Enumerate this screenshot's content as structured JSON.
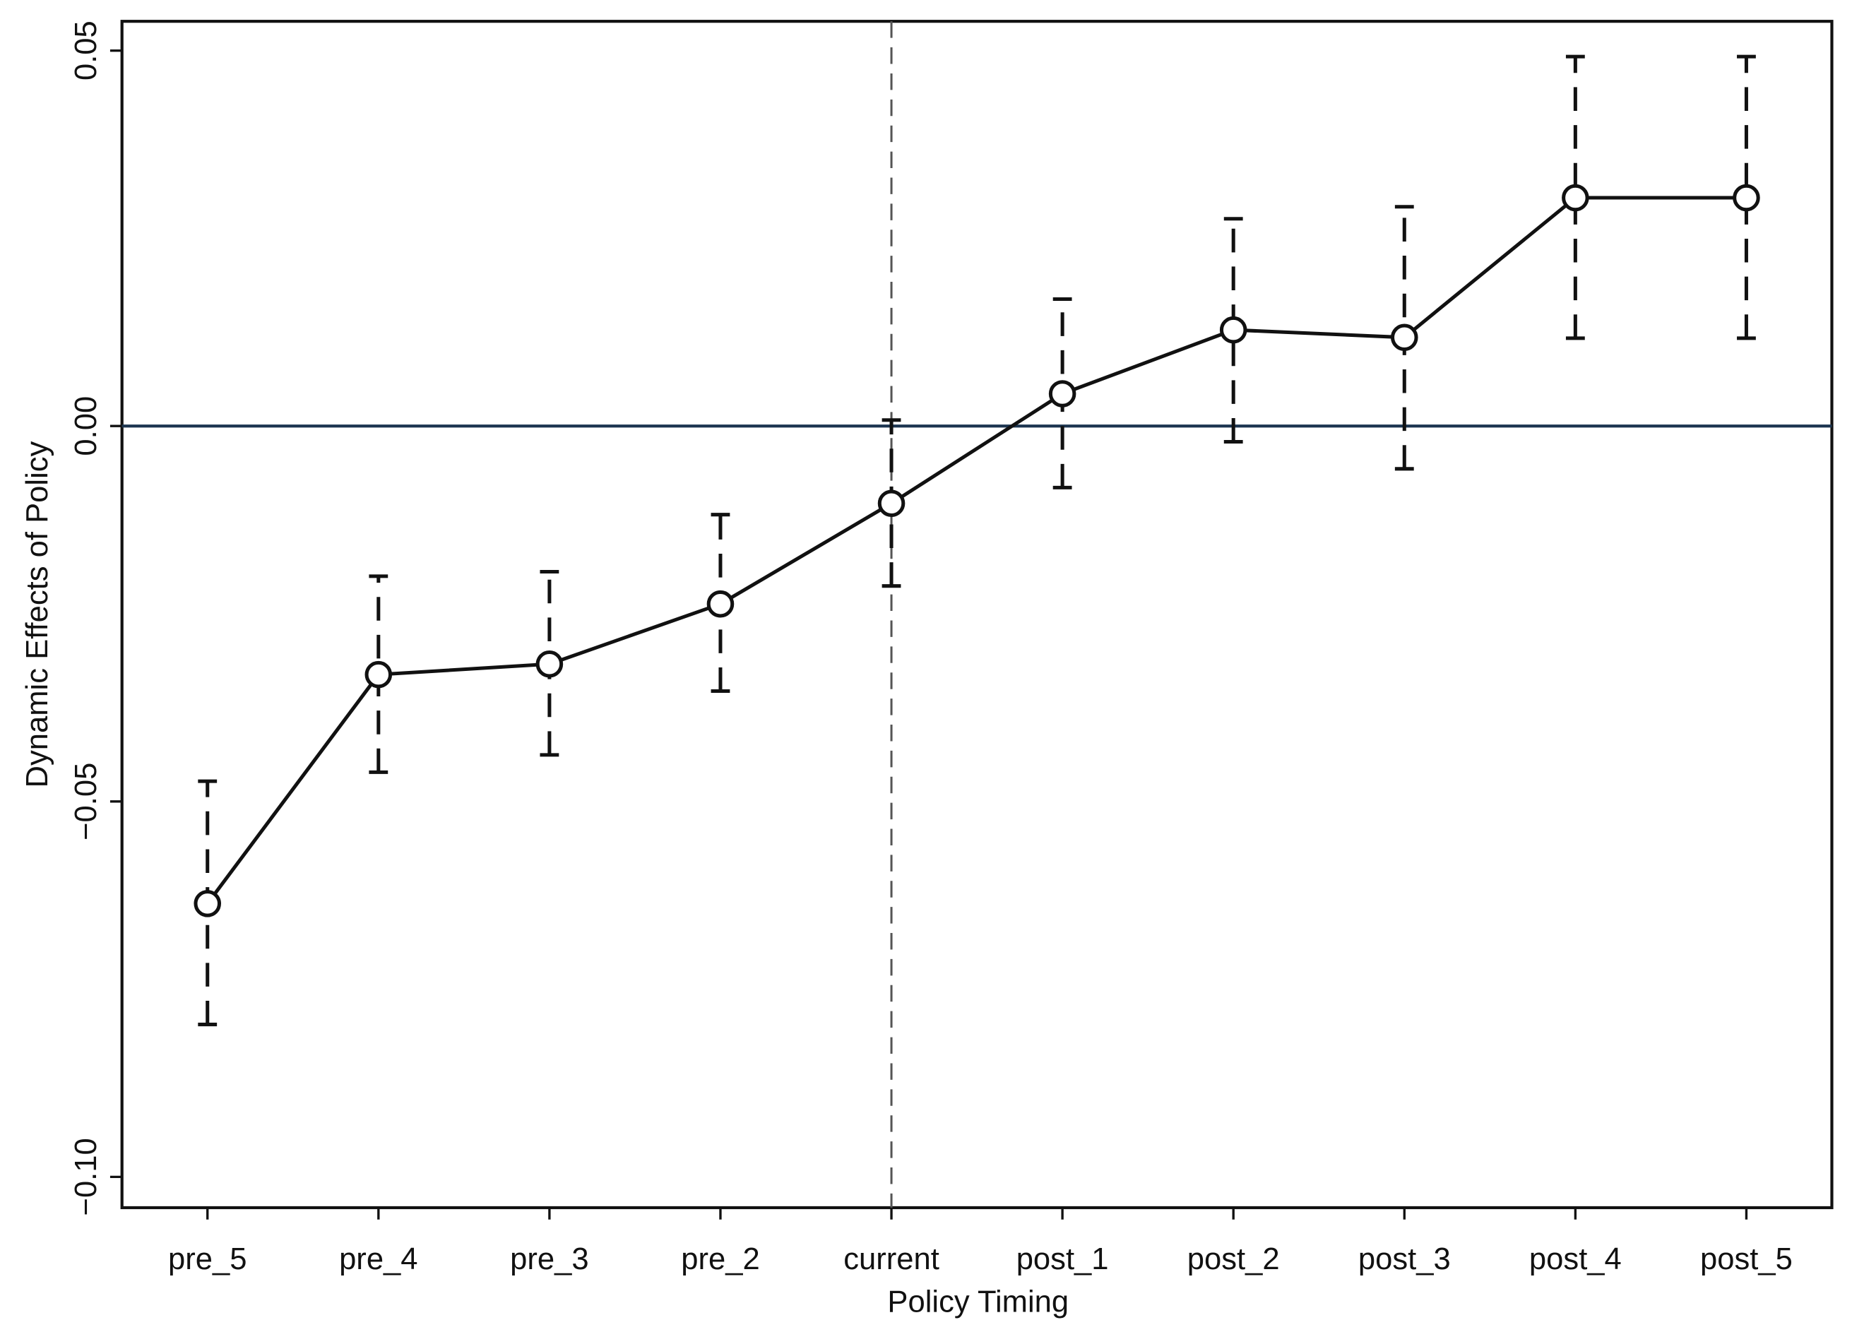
{
  "chart_data": {
    "type": "errorbar-line",
    "x_label": "Policy Timing",
    "y_label": "Dynamic Effects of Policy",
    "categories": [
      "pre_5",
      "pre_4",
      "pre_3",
      "pre_2",
      "current",
      "post_1",
      "post_2",
      "post_3",
      "post_4",
      "post_5"
    ],
    "values": [
      -0.0636,
      -0.0331,
      -0.0317,
      -0.0237,
      -0.0103,
      0.0043,
      0.0128,
      0.0118,
      0.0304,
      0.0304
    ],
    "ci_lower": [
      -0.0797,
      -0.0461,
      -0.0438,
      -0.0353,
      -0.0213,
      -0.0082,
      -0.0021,
      -0.0057,
      0.0117,
      0.0117
    ],
    "ci_upper": [
      -0.0473,
      -0.02,
      -0.0194,
      -0.0118,
      0.0008,
      0.0169,
      0.0276,
      0.0292,
      0.0492,
      0.0492
    ],
    "color": "#111111",
    "ylim": [
      -0.1041,
      0.0539
    ],
    "yticks": [
      {
        "value": -0.1,
        "label": "−0.10"
      },
      {
        "value": -0.05,
        "label": "−0.05"
      },
      {
        "value": 0,
        "label": "0.00"
      },
      {
        "value": 0.05,
        "label": "0.05"
      }
    ],
    "reference_y": 0,
    "reference_y_color": "#1c3550",
    "reference_x": "current"
  }
}
